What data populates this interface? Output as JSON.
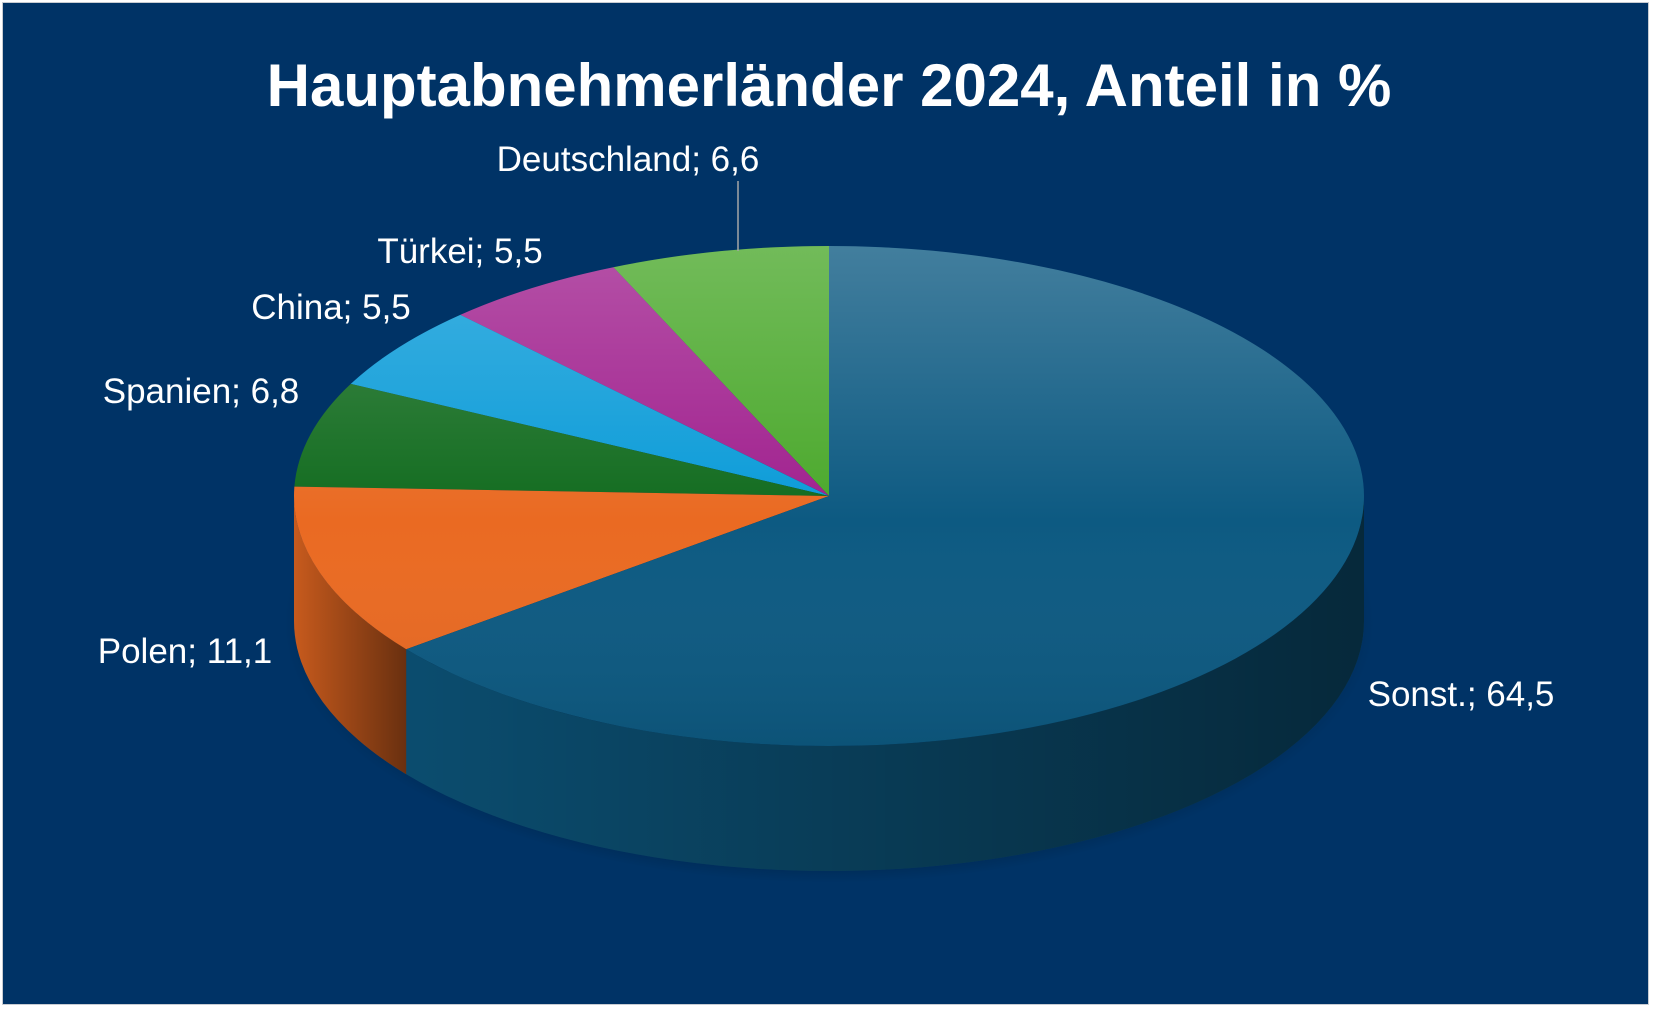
{
  "chart_data": {
    "type": "pie",
    "title": "Hauptabnehmerländer 2024, Anteil in %",
    "slices": [
      {
        "label": "Deutschland; 6,6",
        "name": "Deutschland",
        "value": 6.6,
        "color": "#4aa82b"
      },
      {
        "label": "Türkei; 5,5",
        "name": "Türkei",
        "value": 5.5,
        "color": "#a0208e"
      },
      {
        "label": "China; 5,5",
        "name": "China",
        "value": 5.5,
        "color": "#0a9bd8"
      },
      {
        "label": "Spanien; 6,8",
        "name": "Spanien",
        "value": 6.8,
        "color": "#116b1e"
      },
      {
        "label": "Polen; 11,1",
        "name": "Polen",
        "value": 11.1,
        "color": "#ea6a22"
      },
      {
        "label": "Sonst.; 64,5",
        "name": "Sonst.",
        "value": 64.5,
        "color": "#0d5a82"
      }
    ],
    "style": "3d-exploded-none",
    "background_color": "#003366",
    "text_color": "#ffffff",
    "legend": "none"
  }
}
